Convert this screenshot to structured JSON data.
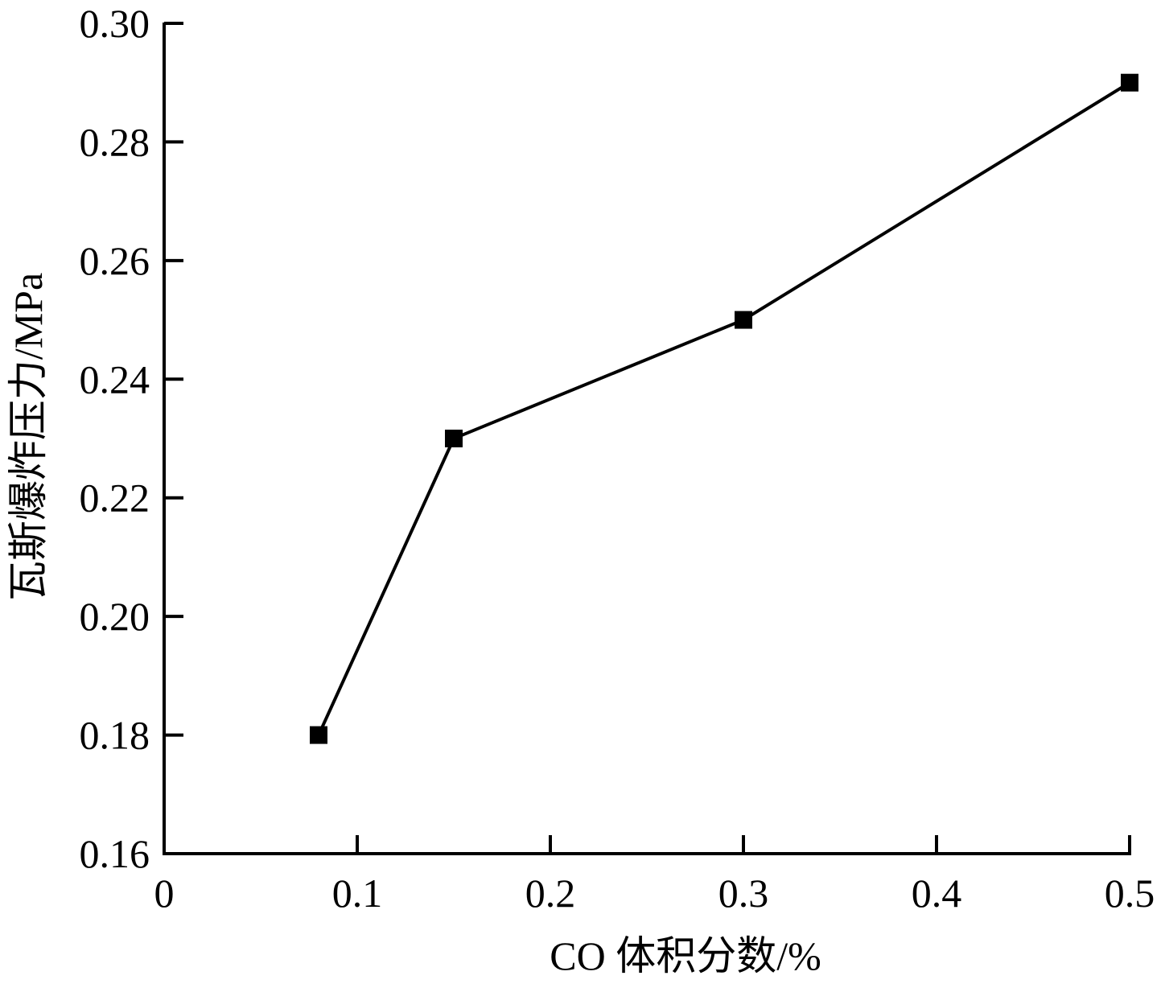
{
  "chart_data": {
    "type": "line",
    "title": "",
    "xlabel": "CO 体积分数/%",
    "ylabel": "瓦斯爆炸压力/MPa",
    "xlim": [
      0,
      0.5
    ],
    "ylim": [
      0.16,
      0.3
    ],
    "x_ticks": [
      0,
      0.1,
      0.2,
      0.3,
      0.4,
      0.5
    ],
    "x_tick_labels": [
      "0",
      "0.1",
      "0.2",
      "0.3",
      "0.4",
      "0.5"
    ],
    "y_ticks": [
      0.16,
      0.18,
      0.2,
      0.22,
      0.24,
      0.26,
      0.28,
      0.3
    ],
    "y_tick_labels": [
      "0.16",
      "0.18",
      "0.20",
      "0.22",
      "0.24",
      "0.26",
      "0.28",
      "0.30"
    ],
    "grid": false,
    "legend": null,
    "series": [
      {
        "name": "瓦斯爆炸压力",
        "marker": "filled-square",
        "color": "#000000",
        "x": [
          0.08,
          0.15,
          0.3,
          0.5
        ],
        "values": [
          0.18,
          0.23,
          0.25,
          0.29
        ]
      }
    ]
  }
}
